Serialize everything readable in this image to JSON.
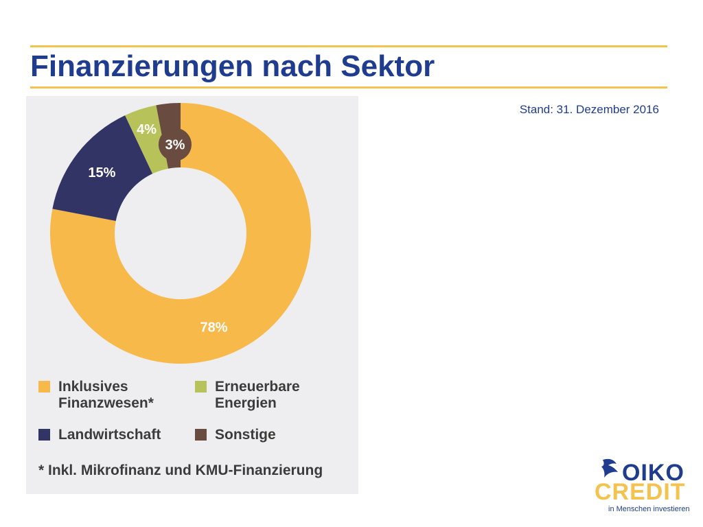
{
  "header": {
    "title": "Finanzierungen nach Sektor",
    "stand": "Stand: 31. Dezember 2016"
  },
  "colors": {
    "accent_rule": "#f4c24f",
    "title": "#1f3c8f",
    "inklusive": "#f8b94b",
    "landwirtschaft": "#323466",
    "erneuerbare": "#b7c35a",
    "sonstige": "#6a4b40"
  },
  "chart_data": {
    "type": "pie",
    "variant": "donut",
    "title": "",
    "slices": [
      {
        "name": "Inklusives Finanzwesen*",
        "value": 78,
        "label": "78%",
        "color": "#f8b94b"
      },
      {
        "name": "Landwirtschaft",
        "value": 15,
        "label": "15%",
        "color": "#323466"
      },
      {
        "name": "Erneuerbare Energien",
        "value": 4,
        "label": "4%",
        "color": "#b7c35a"
      },
      {
        "name": "Sonstige",
        "value": 3,
        "label": "3%",
        "color": "#6a4b40"
      }
    ],
    "legend_placement": "bottom",
    "footnote": "* Inkl. Mikrofinanz und KMU-Finanzierung"
  },
  "legend": [
    {
      "label": "Inklusives\nFinanzwesen*",
      "color": "#f8b94b"
    },
    {
      "label": "Erneuerbare\nEnergien",
      "color": "#b7c35a"
    },
    {
      "label": "Landwirtschaft",
      "color": "#323466"
    },
    {
      "label": "Sonstige",
      "color": "#6a4b40"
    }
  ],
  "logo": {
    "oiko": "OIKO",
    "credit": "CREDIT",
    "tagline": "in Menschen investieren"
  }
}
